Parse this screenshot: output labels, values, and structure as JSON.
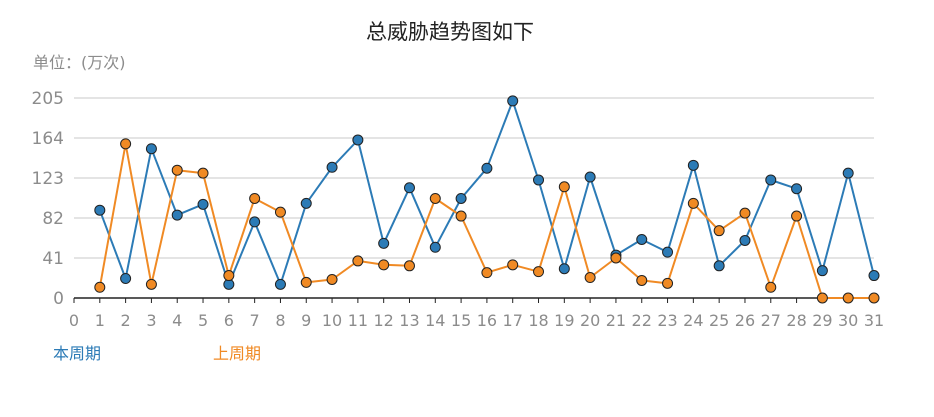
{
  "chart_data": {
    "type": "line",
    "title": "总威胁趋势图如下",
    "unit_label": "单位：(万次)",
    "x": [
      0,
      1,
      2,
      3,
      4,
      5,
      6,
      7,
      8,
      9,
      10,
      11,
      12,
      13,
      14,
      15,
      16,
      17,
      18,
      19,
      20,
      21,
      22,
      23,
      24,
      25,
      26,
      27,
      28,
      29,
      30,
      31
    ],
    "xlim": [
      0,
      31
    ],
    "ylim": [
      0,
      205
    ],
    "yticks": [
      0,
      41,
      82,
      123,
      164,
      205
    ],
    "grid": true,
    "legend_position": "bottom-left",
    "series": [
      {
        "name": "本周期",
        "color": "#2c7bb6",
        "x": [
          1,
          2,
          3,
          4,
          5,
          6,
          7,
          8,
          9,
          10,
          11,
          12,
          13,
          14,
          15,
          16,
          17,
          18,
          19,
          20,
          21,
          22,
          23,
          24,
          25,
          26,
          27,
          28,
          29,
          30,
          31
        ],
        "values": [
          90,
          20,
          153,
          85,
          96,
          14,
          78,
          14,
          97,
          134,
          162,
          56,
          113,
          52,
          102,
          133,
          202,
          121,
          30,
          124,
          44,
          60,
          47,
          136,
          33,
          59,
          121,
          112,
          28,
          128,
          23
        ]
      },
      {
        "name": "上周期",
        "color": "#f08a24",
        "x": [
          1,
          2,
          3,
          4,
          5,
          6,
          7,
          8,
          9,
          10,
          11,
          12,
          13,
          14,
          15,
          16,
          17,
          18,
          19,
          20,
          21,
          22,
          23,
          24,
          25,
          26,
          27,
          28,
          29,
          30,
          31
        ],
        "values": [
          11,
          158,
          14,
          131,
          128,
          23,
          102,
          88,
          16,
          19,
          38,
          34,
          33,
          102,
          84,
          26,
          34,
          27,
          114,
          21,
          41,
          18,
          15,
          97,
          69,
          87,
          11,
          84,
          0,
          0,
          0
        ]
      }
    ]
  }
}
